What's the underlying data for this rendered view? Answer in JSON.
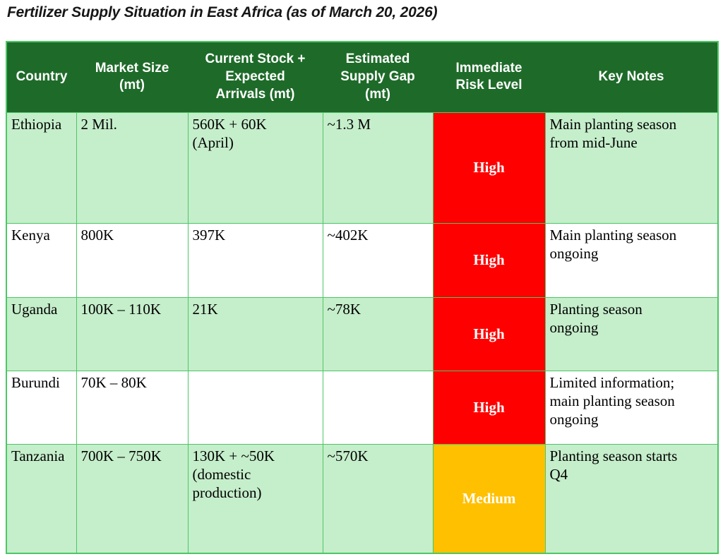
{
  "title": "Fertilizer Supply Situation in East Africa (as of March 20, 2026)",
  "colors": {
    "header_bg": "#1E6B29",
    "header_text": "#FFFFFF",
    "row_green": "#C5EECB",
    "row_white": "#FFFFFF",
    "grid": "#4CC764",
    "risk_high": "#FF0000",
    "risk_medium": "#FFC000",
    "risk_text": "#FFFFFF"
  },
  "table": {
    "headers": [
      "Country",
      "Market Size\n(mt)",
      "Current Stock +\nExpected\nArrivals (mt)",
      "Estimated\nSupply Gap\n(mt)",
      "Immediate\nRisk Level",
      "Key Notes"
    ],
    "rows": [
      {
        "country": "Ethiopia",
        "market_size": "2 Mil.",
        "stock_arrivals": "560K + 60K\n(April)",
        "supply_gap": "~1.3 M",
        "risk_level": "High",
        "key_notes": "Main planting season\nfrom mid-June"
      },
      {
        "country": "Kenya",
        "market_size": "800K",
        "stock_arrivals": "397K",
        "supply_gap": "~402K",
        "risk_level": "High",
        "key_notes": "Main planting season\nongoing"
      },
      {
        "country": "Uganda",
        "market_size": "100K – 110K",
        "stock_arrivals": "21K",
        "supply_gap": "~78K",
        "risk_level": "High",
        "key_notes": "Planting season\nongoing"
      },
      {
        "country": "Burundi",
        "market_size": "70K – 80K",
        "stock_arrivals": "",
        "supply_gap": "",
        "risk_level": "High",
        "key_notes": "Limited information;\nmain planting season\nongoing"
      },
      {
        "country": "Tanzania",
        "market_size": "700K – 750K",
        "stock_arrivals": "130K + ~50K\n(domestic\nproduction)",
        "supply_gap": "~570K",
        "risk_level": "Medium",
        "key_notes": "Planting season starts\nQ4"
      }
    ]
  }
}
